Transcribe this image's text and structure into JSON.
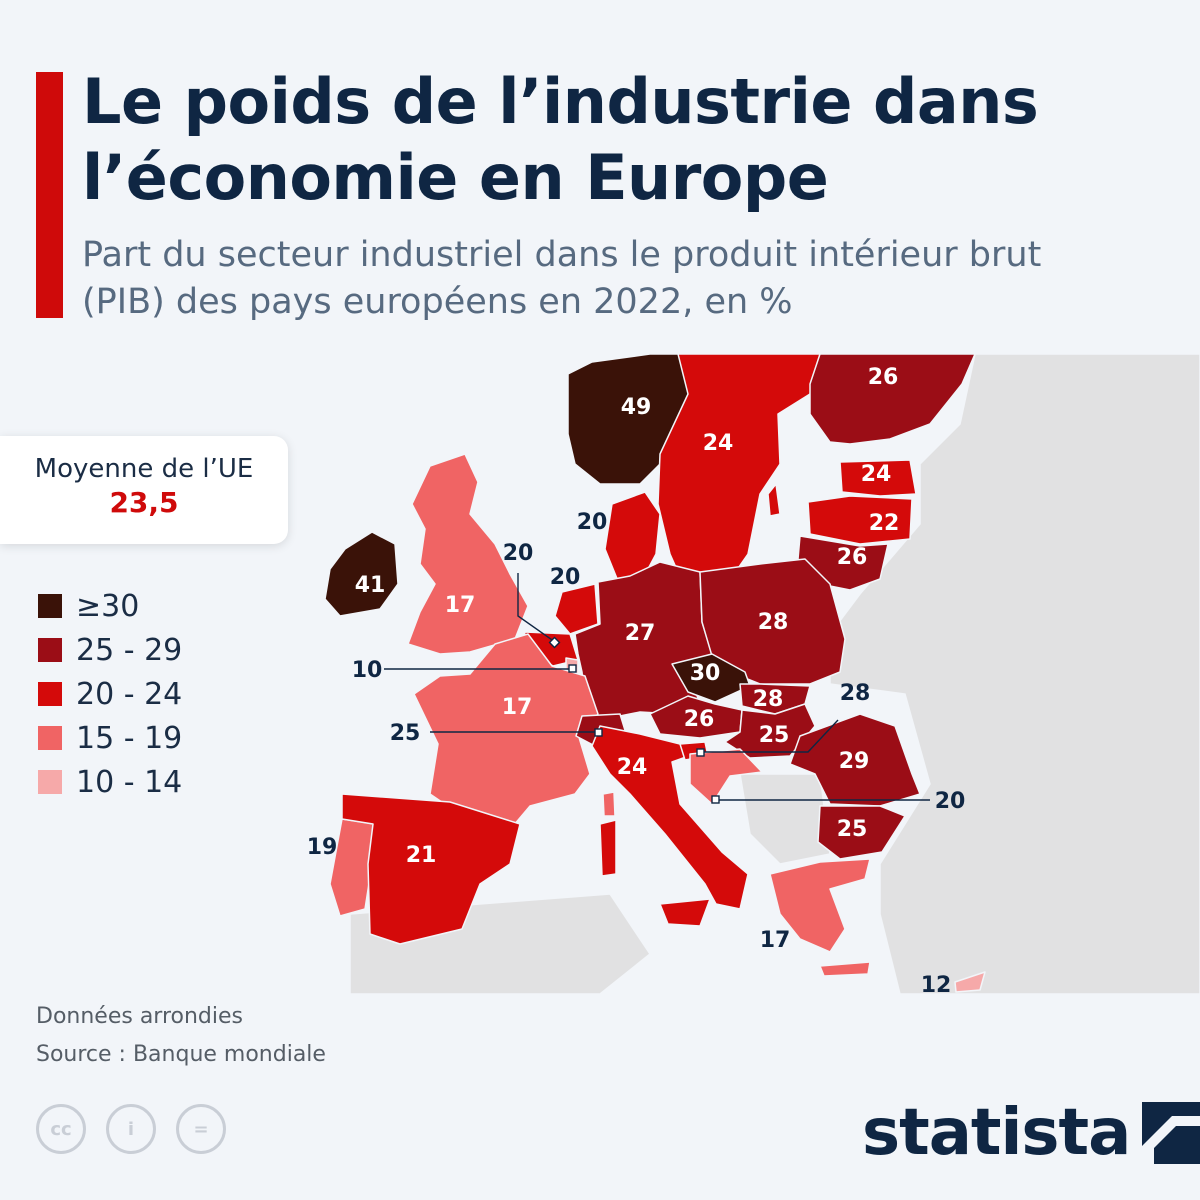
{
  "title": "Le poids de l’industrie dans l’économie en Europe",
  "subtitle": "Part du secteur industriel dans le produit intérieur brut (PIB) des pays européens en 2022, en %",
  "eu_average": {
    "label": "Moyenne de l’UE",
    "value": "23,5"
  },
  "legend": [
    {
      "label": "≥30",
      "color": "#3a1208"
    },
    {
      "label": "25 - 29",
      "color": "#9b0d16"
    },
    {
      "label": "20 - 24",
      "color": "#d40a0a"
    },
    {
      "label": "15 - 19",
      "color": "#f06464"
    },
    {
      "label": "10 - 14",
      "color": "#f6a9a9"
    }
  ],
  "map_labels": [
    {
      "text": "49",
      "light": true
    },
    {
      "text": "24",
      "light": true
    },
    {
      "text": "26",
      "light": true
    },
    {
      "text": "24",
      "light": true
    },
    {
      "text": "22",
      "light": true
    },
    {
      "text": "26",
      "light": true
    },
    {
      "text": "20",
      "light": false
    },
    {
      "text": "41",
      "light": true
    },
    {
      "text": "17",
      "light": true
    },
    {
      "text": "20",
      "light": false
    },
    {
      "text": "20",
      "light": false
    },
    {
      "text": "27",
      "light": true
    },
    {
      "text": "28",
      "light": true
    },
    {
      "text": "10",
      "light": false
    },
    {
      "text": "30",
      "light": true
    },
    {
      "text": "28",
      "light": true
    },
    {
      "text": "28",
      "light": false
    },
    {
      "text": "17",
      "light": true
    },
    {
      "text": "26",
      "light": true
    },
    {
      "text": "25",
      "light": true
    },
    {
      "text": "25",
      "light": false
    },
    {
      "text": "29",
      "light": true
    },
    {
      "text": "24",
      "light": true
    },
    {
      "text": "20",
      "light": false
    },
    {
      "text": "25",
      "light": true
    },
    {
      "text": "19",
      "light": false
    },
    {
      "text": "21",
      "light": true
    },
    {
      "text": "17",
      "light": false
    },
    {
      "text": "12",
      "light": false
    }
  ],
  "notes": [
    "Données arrondies",
    "Source : Banque mondiale"
  ],
  "cc_icons": [
    {
      "name": "cc-icon",
      "text": "cc"
    },
    {
      "name": "by-icon",
      "text": "i"
    },
    {
      "name": "nd-icon",
      "text": "="
    }
  ],
  "brand": "statista"
}
